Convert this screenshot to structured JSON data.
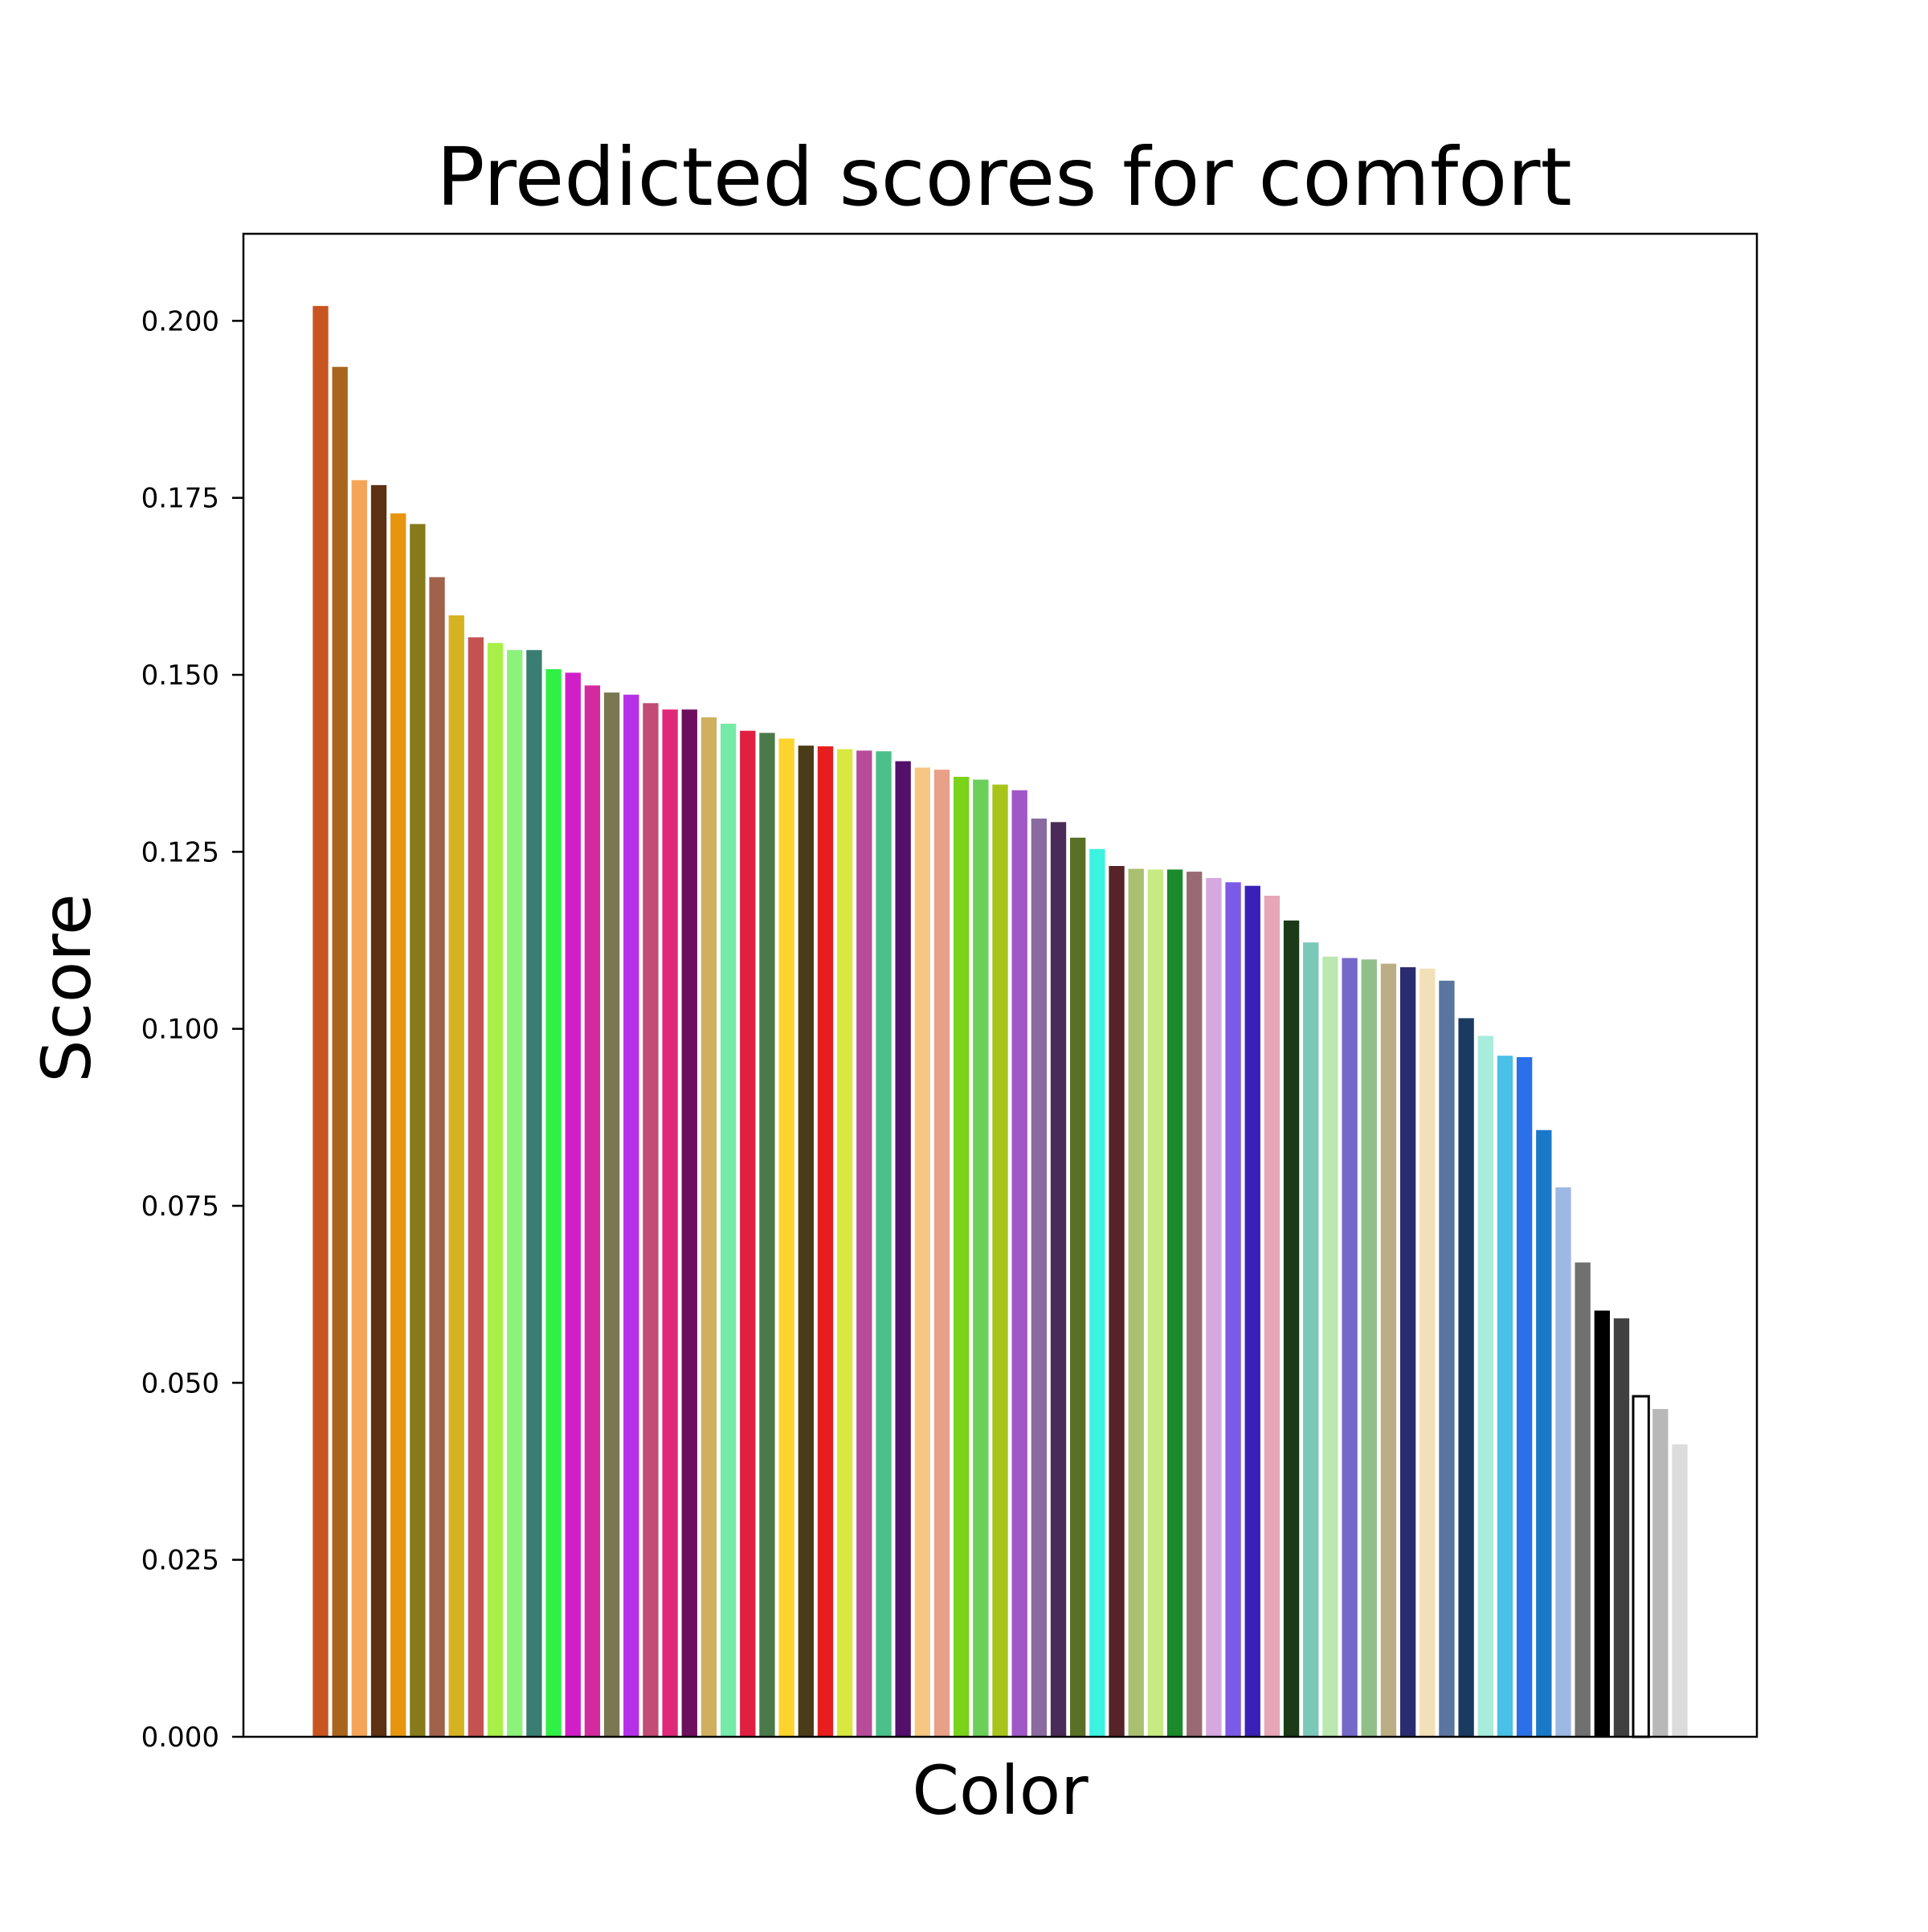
{
  "chart_data": {
    "type": "bar",
    "title": "Predicted scores for comfort",
    "xlabel": "Color",
    "ylabel": "Score",
    "ylim": [
      0,
      0.2123
    ],
    "yticks": [
      "0.000",
      "0.025",
      "0.050",
      "0.075",
      "0.100",
      "0.125",
      "0.150",
      "0.175",
      "0.200"
    ],
    "ytick_values": [
      0,
      0.025,
      0.05,
      0.075,
      0.1,
      0.125,
      0.15,
      0.175,
      0.2
    ],
    "grid": false,
    "legend": "none",
    "bars": [
      {
        "value": 0.2021,
        "color": "#c85520"
      },
      {
        "value": 0.1935,
        "color": "#a9651e"
      },
      {
        "value": 0.1775,
        "color": "#f4a55a"
      },
      {
        "value": 0.1768,
        "color": "#5e3212"
      },
      {
        "value": 0.1728,
        "color": "#e8950e"
      },
      {
        "value": 0.1713,
        "color": "#867a1c"
      },
      {
        "value": 0.1638,
        "color": "#a0624a"
      },
      {
        "value": 0.1584,
        "color": "#d4b222"
      },
      {
        "value": 0.1553,
        "color": "#c55252"
      },
      {
        "value": 0.1545,
        "color": "#a8f048"
      },
      {
        "value": 0.1535,
        "color": "#8cf27a"
      },
      {
        "value": 0.1535,
        "color": "#3a7d72"
      },
      {
        "value": 0.1508,
        "color": "#2ff045"
      },
      {
        "value": 0.1503,
        "color": "#d21ec8"
      },
      {
        "value": 0.1485,
        "color": "#d42aa0"
      },
      {
        "value": 0.1475,
        "color": "#7a7852"
      },
      {
        "value": 0.1472,
        "color": "#b630e8"
      },
      {
        "value": 0.146,
        "color": "#c24c76"
      },
      {
        "value": 0.1451,
        "color": "#e0287a"
      },
      {
        "value": 0.1451,
        "color": "#6e0e5e"
      },
      {
        "value": 0.144,
        "color": "#d0b060"
      },
      {
        "value": 0.1431,
        "color": "#76eaa8"
      },
      {
        "value": 0.1421,
        "color": "#e02040"
      },
      {
        "value": 0.1418,
        "color": "#4a7a4a"
      },
      {
        "value": 0.141,
        "color": "#fdd42e"
      },
      {
        "value": 0.14,
        "color": "#4a3c18"
      },
      {
        "value": 0.1399,
        "color": "#e81e1e"
      },
      {
        "value": 0.1395,
        "color": "#d8e840"
      },
      {
        "value": 0.1393,
        "color": "#b84c9a"
      },
      {
        "value": 0.1392,
        "color": "#4cc08a"
      },
      {
        "value": 0.1378,
        "color": "#52106a"
      },
      {
        "value": 0.1369,
        "color": "#f6c782"
      },
      {
        "value": 0.1366,
        "color": "#e8a088"
      },
      {
        "value": 0.1356,
        "color": "#7ad21a"
      },
      {
        "value": 0.1352,
        "color": "#6ad05a"
      },
      {
        "value": 0.1345,
        "color": "#a8c41a"
      },
      {
        "value": 0.1337,
        "color": "#a058c8"
      },
      {
        "value": 0.1297,
        "color": "#8a6aa0"
      },
      {
        "value": 0.1292,
        "color": "#4a2a56"
      },
      {
        "value": 0.127,
        "color": "#5a7026"
      },
      {
        "value": 0.1254,
        "color": "#3cf2e0"
      },
      {
        "value": 0.123,
        "color": "#562428"
      },
      {
        "value": 0.1226,
        "color": "#a8c070"
      },
      {
        "value": 0.1225,
        "color": "#c8ea82"
      },
      {
        "value": 0.1225,
        "color": "#1a8a2a"
      },
      {
        "value": 0.1222,
        "color": "#9a6a72"
      },
      {
        "value": 0.1213,
        "color": "#d6a8e0"
      },
      {
        "value": 0.1207,
        "color": "#7c5ae8"
      },
      {
        "value": 0.1202,
        "color": "#3a20b8"
      },
      {
        "value": 0.1188,
        "color": "#e6a6b8"
      },
      {
        "value": 0.1153,
        "color": "#1a3a18"
      },
      {
        "value": 0.1122,
        "color": "#7ac8b8"
      },
      {
        "value": 0.1102,
        "color": "#bae8b0"
      },
      {
        "value": 0.11,
        "color": "#7468c8"
      },
      {
        "value": 0.1098,
        "color": "#90c088"
      },
      {
        "value": 0.1092,
        "color": "#bcae84"
      },
      {
        "value": 0.1087,
        "color": "#2a2c70"
      },
      {
        "value": 0.1085,
        "color": "#f2e0b8"
      },
      {
        "value": 0.1068,
        "color": "#5a76a0"
      },
      {
        "value": 0.1015,
        "color": "#1a3a60"
      },
      {
        "value": 0.099,
        "color": "#a8ecdc"
      },
      {
        "value": 0.0962,
        "color": "#48c0e8"
      },
      {
        "value": 0.096,
        "color": "#2a70e8"
      },
      {
        "value": 0.0857,
        "color": "#1a78c8"
      },
      {
        "value": 0.0776,
        "color": "#9eb8e4"
      },
      {
        "value": 0.067,
        "color": "#707070"
      },
      {
        "value": 0.0602,
        "color": "#000000"
      },
      {
        "value": 0.0591,
        "color": "#404040"
      },
      {
        "value": 0.0481,
        "color": "#ffffff",
        "outline": "#000000"
      },
      {
        "value": 0.0463,
        "color": "#b8b8b8"
      },
      {
        "value": 0.0413,
        "color": "#dcdcdc"
      }
    ]
  }
}
